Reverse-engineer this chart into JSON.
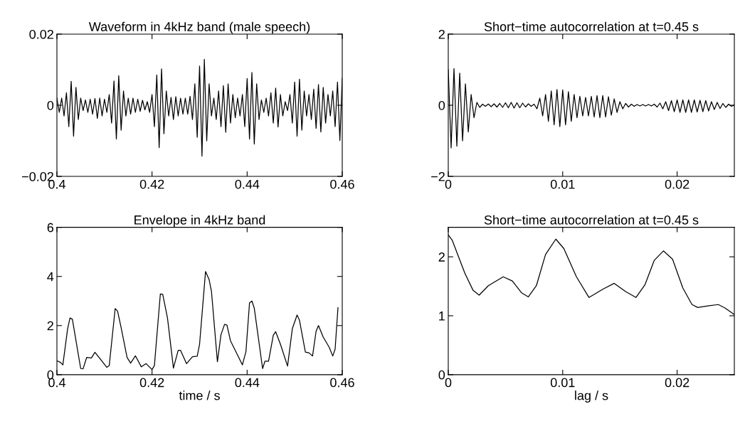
{
  "chart_data": [
    {
      "type": "line",
      "title": "Waveform in 4kHz band (male speech)",
      "xlim": [
        0.4,
        0.46
      ],
      "ylim": [
        -0.02,
        0.02
      ],
      "xticks": [
        0.4,
        0.42,
        0.44,
        0.46
      ],
      "yticks": [
        {
          "value": -0.02,
          "label": "−0.02"
        },
        0,
        0.02
      ],
      "x": [
        0.4,
        0.4005,
        0.401,
        0.4015,
        0.402,
        0.4025,
        0.403,
        0.4035,
        0.404,
        0.4045,
        0.405,
        0.4055,
        0.406,
        0.4065,
        0.407,
        0.4075,
        0.408,
        0.4085,
        0.409,
        0.4095,
        0.41,
        0.4105,
        0.411,
        0.4115,
        0.412,
        0.4125,
        0.413,
        0.4135,
        0.414,
        0.4145,
        0.415,
        0.4155,
        0.416,
        0.4165,
        0.417,
        0.4175,
        0.418,
        0.4185,
        0.419,
        0.4195,
        0.42,
        0.4205,
        0.421,
        0.4215,
        0.422,
        0.4225,
        0.423,
        0.4235,
        0.424,
        0.4245,
        0.425,
        0.4255,
        0.426,
        0.4265,
        0.427,
        0.4275,
        0.428,
        0.4285,
        0.429,
        0.4295,
        0.43,
        0.4305,
        0.431,
        0.4315,
        0.432,
        0.4325,
        0.433,
        0.4335,
        0.434,
        0.4345,
        0.435,
        0.4355,
        0.436,
        0.4365,
        0.437,
        0.4375,
        0.438,
        0.4385,
        0.439,
        0.4395,
        0.44,
        0.4405,
        0.441,
        0.4415,
        0.442,
        0.4425,
        0.443,
        0.4435,
        0.444,
        0.4445,
        0.445,
        0.4455,
        0.446,
        0.4465,
        0.447,
        0.4475,
        0.448,
        0.4485,
        0.449,
        0.4495,
        0.45,
        0.4505,
        0.451,
        0.4515,
        0.452,
        0.4525,
        0.453,
        0.4535,
        0.454,
        0.4545,
        0.455,
        0.4555,
        0.456,
        0.4565,
        0.457,
        0.4575,
        0.458,
        0.4585,
        0.459,
        0.4595,
        0.46
      ],
      "series": [
        {
          "color": "#000000",
          "values": [
            0.002,
            -0.002,
            0.002,
            -0.003,
            0.0035,
            -0.006,
            0.0067,
            -0.0087,
            0.005,
            -0.004,
            0.002,
            -0.0015,
            0.0015,
            -0.002,
            0.0017,
            -0.0025,
            0.0019,
            -0.0037,
            0.002,
            -0.003,
            0.0017,
            -0.002,
            0.003,
            -0.005,
            0.0068,
            -0.0095,
            0.0083,
            -0.007,
            0.004,
            -0.003,
            0.002,
            -0.0025,
            0.002,
            -0.002,
            0.0017,
            -0.0017,
            0.0014,
            -0.0013,
            0.001,
            -0.002,
            0.003,
            -0.006,
            0.0085,
            -0.0119,
            0.0102,
            -0.008,
            0.004,
            -0.003,
            0.0022,
            -0.004,
            0.0024,
            -0.003,
            0.002,
            -0.0025,
            0.002,
            -0.0025,
            0.0025,
            -0.004,
            0.006,
            -0.009,
            0.011,
            -0.0143,
            0.0129,
            -0.01,
            0.006,
            -0.003,
            0.002,
            -0.004,
            0.004,
            -0.006,
            0.0055,
            -0.0076,
            0.006,
            -0.005,
            0.003,
            -0.0035,
            0.002,
            -0.003,
            0.003,
            -0.006,
            0.0075,
            -0.0095,
            0.0092,
            -0.0109,
            0.006,
            -0.004,
            0.0015,
            -0.002,
            0.002,
            -0.003,
            0.0035,
            -0.005,
            0.0048,
            -0.0061,
            0.003,
            -0.003,
            0.001,
            -0.0015,
            0.003,
            -0.005,
            0.0065,
            -0.0087,
            0.0073,
            -0.007,
            0.004,
            -0.003,
            0.003,
            -0.004,
            0.0045,
            -0.0065,
            0.0058,
            -0.0075,
            0.005,
            -0.005,
            0.003,
            -0.003,
            0.004,
            -0.006,
            0.0065,
            -0.0099,
            0.0076
          ]
        }
      ]
    },
    {
      "type": "line",
      "title": "Short−time autocorrelation at t=0.45 s",
      "xlim": [
        0,
        0.025
      ],
      "ylim": [
        -2,
        2
      ],
      "xticks": [
        0,
        0.01,
        0.02
      ],
      "yticks": [
        {
          "value": -2,
          "label": "−2"
        },
        0,
        2
      ],
      "x": [
        0,
        0.00025,
        0.0005,
        0.00075,
        0.001,
        0.00125,
        0.0015,
        0.00175,
        0.002,
        0.00225,
        0.0025,
        0.00275,
        0.003,
        0.00325,
        0.0035,
        0.00375,
        0.004,
        0.00425,
        0.0045,
        0.00475,
        0.005,
        0.00525,
        0.0055,
        0.00575,
        0.006,
        0.00625,
        0.0065,
        0.00675,
        0.007,
        0.00725,
        0.0075,
        0.00775,
        0.008,
        0.00825,
        0.0085,
        0.00875,
        0.009,
        0.00925,
        0.0095,
        0.00975,
        0.01,
        0.01025,
        0.0105,
        0.01075,
        0.011,
        0.01125,
        0.0115,
        0.01175,
        0.012,
        0.01225,
        0.0125,
        0.01275,
        0.013,
        0.01325,
        0.0135,
        0.01375,
        0.014,
        0.01425,
        0.0145,
        0.01475,
        0.015,
        0.01525,
        0.0155,
        0.01575,
        0.016,
        0.01625,
        0.0165,
        0.01675,
        0.017,
        0.01725,
        0.0175,
        0.01775,
        0.018,
        0.01825,
        0.0185,
        0.01875,
        0.019,
        0.01925,
        0.0195,
        0.01975,
        0.02,
        0.02025,
        0.0205,
        0.02075,
        0.021,
        0.02125,
        0.0215,
        0.02175,
        0.022,
        0.02225,
        0.0225,
        0.02275,
        0.023,
        0.02325,
        0.0235,
        0.02375,
        0.024,
        0.02425,
        0.0245,
        0.02475,
        0.025
      ],
      "series": [
        {
          "color": "#000000",
          "values": [
            1.0,
            -1.2,
            1.03,
            -1.15,
            0.9,
            -1.0,
            0.6,
            -0.75,
            0.3,
            -0.35,
            0.08,
            -0.06,
            0.03,
            -0.03,
            0.035,
            -0.04,
            0.04,
            -0.05,
            0.05,
            -0.06,
            0.07,
            -0.07,
            0.08,
            -0.08,
            0.07,
            -0.07,
            0.06,
            -0.05,
            0.04,
            -0.03,
            0.03,
            -0.1,
            0.2,
            -0.3,
            0.3,
            -0.45,
            0.4,
            -0.55,
            0.44,
            -0.6,
            0.43,
            -0.55,
            0.38,
            -0.45,
            0.3,
            -0.35,
            0.25,
            -0.3,
            0.22,
            -0.3,
            0.25,
            -0.33,
            0.27,
            -0.35,
            0.27,
            -0.33,
            0.24,
            -0.28,
            0.18,
            -0.2,
            0.1,
            -0.1,
            0.05,
            -0.05,
            0.03,
            -0.03,
            0.02,
            -0.02,
            0.02,
            -0.02,
            0.02,
            -0.02,
            0.03,
            -0.05,
            0.06,
            -0.1,
            0.1,
            -0.15,
            0.13,
            -0.18,
            0.15,
            -0.2,
            0.15,
            -0.2,
            0.15,
            -0.2,
            0.15,
            -0.19,
            0.14,
            -0.18,
            0.13,
            -0.16,
            0.1,
            -0.12,
            0.08,
            -0.09,
            0.05,
            -0.06,
            0.03,
            -0.03,
            0.01
          ]
        }
      ]
    },
    {
      "type": "line",
      "title": "Envelope in 4kHz band",
      "xlabel": "time / s",
      "xlim": [
        0.4,
        0.46
      ],
      "ylim": [
        0,
        6
      ],
      "xticks": [
        0.4,
        0.42,
        0.44,
        0.46
      ],
      "yticks": [
        0,
        2,
        4,
        6
      ],
      "x": [
        0.4,
        0.40075,
        0.40125,
        0.40225,
        0.40275,
        0.40325,
        0.405,
        0.4055,
        0.40625,
        0.40725,
        0.408,
        0.4105,
        0.411,
        0.41225,
        0.41275,
        0.4135,
        0.41475,
        0.4155,
        0.4165,
        0.41775,
        0.41875,
        0.42,
        0.4205,
        0.42175,
        0.42225,
        0.42325,
        0.4245,
        0.4255,
        0.426,
        0.42725,
        0.4285,
        0.4295,
        0.43,
        0.43125,
        0.432,
        0.4325,
        0.43375,
        0.4345,
        0.43525,
        0.43575,
        0.4365,
        0.438,
        0.439,
        0.43975,
        0.4405,
        0.441,
        0.4415,
        0.44325,
        0.44375,
        0.4445,
        0.4455,
        0.446,
        0.447,
        0.4485,
        0.4495,
        0.4505,
        0.451,
        0.45225,
        0.453,
        0.45375,
        0.4545,
        0.455,
        0.456,
        0.45725,
        0.458,
        0.4585,
        0.4591
      ],
      "series": [
        {
          "color": "#000000",
          "values": [
            0.57,
            0.5,
            0.4,
            1.87,
            2.31,
            2.26,
            0.25,
            0.24,
            0.7,
            0.68,
            0.91,
            0.3,
            0.37,
            2.69,
            2.59,
            1.92,
            0.7,
            0.47,
            0.77,
            0.32,
            0.45,
            0.21,
            0.37,
            3.29,
            3.27,
            2.31,
            0.27,
            0.99,
            0.99,
            0.45,
            0.73,
            0.75,
            1.24,
            4.2,
            3.88,
            3.39,
            0.53,
            1.63,
            2.05,
            2.02,
            1.38,
            0.79,
            0.4,
            0.94,
            2.92,
            3.0,
            2.71,
            0.25,
            0.55,
            0.55,
            1.61,
            1.75,
            1.24,
            0.35,
            1.87,
            2.43,
            2.22,
            0.92,
            0.89,
            0.76,
            1.77,
            2.0,
            1.53,
            1.12,
            0.76,
            1.04,
            2.73
          ]
        }
      ]
    },
    {
      "type": "line",
      "title": "Short−time autocorrelation at t=0.45 s",
      "xlabel": "lag / s",
      "xlim": [
        0,
        0.025
      ],
      "ylim": [
        0,
        2.5
      ],
      "xticks": [
        0,
        0.01,
        0.02
      ],
      "yticks": [
        0,
        1,
        2
      ],
      "x": [
        0,
        0.00035,
        0.00145,
        0.00217,
        0.0027,
        0.0035,
        0.0048,
        0.0056,
        0.0064,
        0.007,
        0.0077,
        0.0085,
        0.0094,
        0.0101,
        0.0112,
        0.0123,
        0.0135,
        0.0145,
        0.0155,
        0.0164,
        0.0172,
        0.018,
        0.0188,
        0.0196,
        0.0205,
        0.0213,
        0.0218,
        0.0228,
        0.0236,
        0.0242,
        0.025
      ],
      "series": [
        {
          "color": "#000000",
          "values": [
            2.37,
            2.28,
            1.72,
            1.43,
            1.35,
            1.51,
            1.66,
            1.59,
            1.39,
            1.32,
            1.51,
            2.04,
            2.3,
            2.14,
            1.66,
            1.31,
            1.45,
            1.55,
            1.41,
            1.31,
            1.53,
            1.94,
            2.1,
            1.96,
            1.47,
            1.19,
            1.14,
            1.17,
            1.19,
            1.13,
            1.02
          ]
        }
      ]
    }
  ]
}
